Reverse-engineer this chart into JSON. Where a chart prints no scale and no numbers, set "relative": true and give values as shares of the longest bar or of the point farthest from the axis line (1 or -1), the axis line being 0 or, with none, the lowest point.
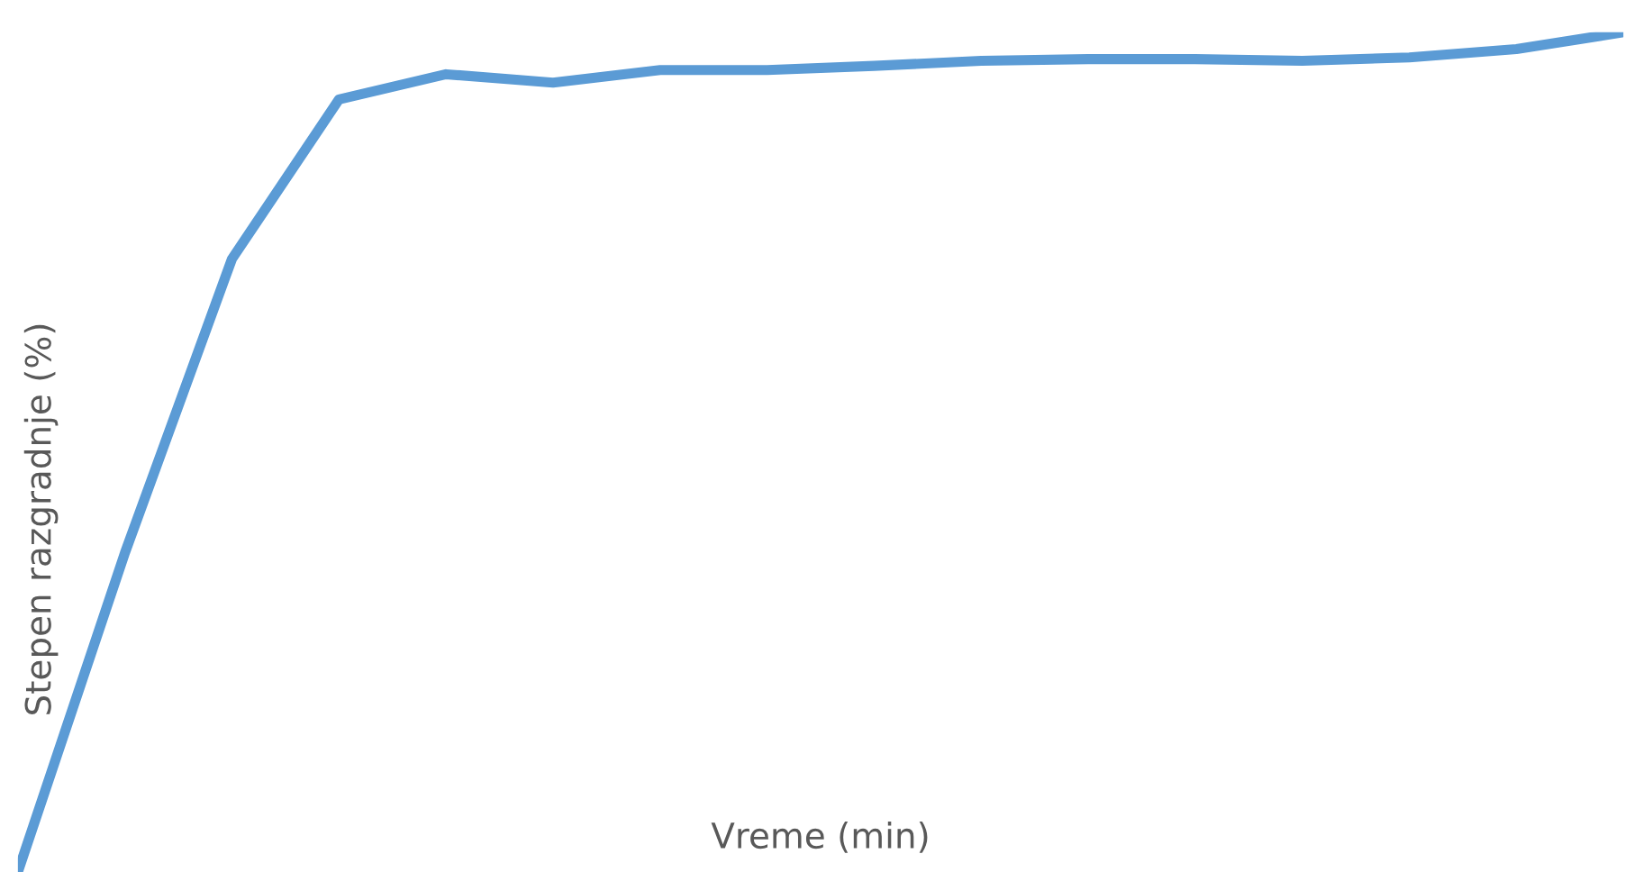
{
  "chart_data": {
    "type": "line",
    "relative": true,
    "xlabel": "Vreme (min)",
    "ylabel": "Stepen razgradnje (%)",
    "categories": [
      null,
      null,
      null,
      null,
      null,
      null,
      null,
      null,
      null,
      null,
      null,
      null,
      null,
      null,
      null,
      null
    ],
    "series": [
      {
        "color": "#5b9bd5",
        "values": [
          0,
          0.38,
          0.73,
          0.92,
          0.95,
          0.94,
          0.955,
          0.955,
          0.96,
          0.966,
          0.968,
          0.968,
          0.966,
          0.97,
          0.98,
          1
        ]
      }
    ],
    "grid": false,
    "legend": false
  }
}
